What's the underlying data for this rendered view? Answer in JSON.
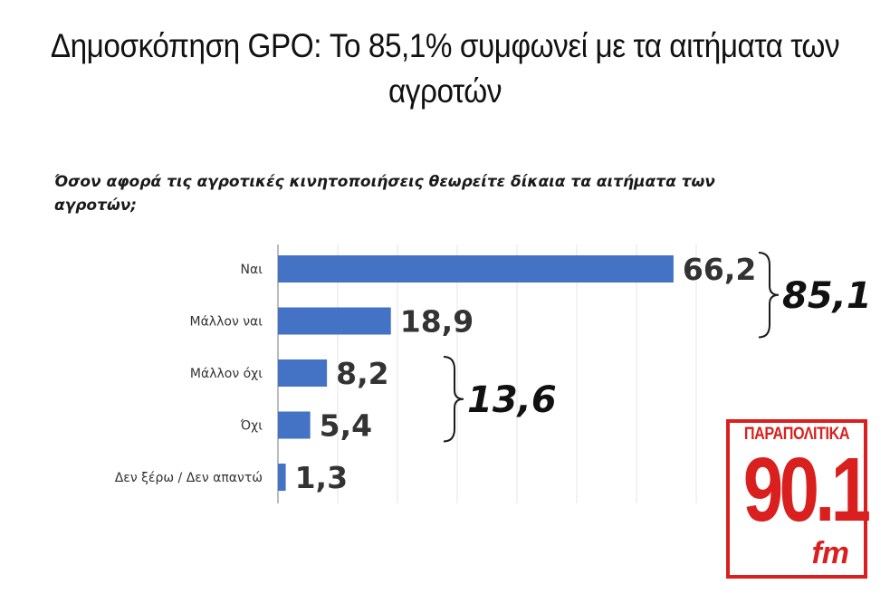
{
  "headline": {
    "line1": "Δημοσκόπηση GPO: Το 85,1% συμφωνεί με τα αιτήματα των",
    "line2": "αγροτών"
  },
  "question": {
    "line1": "Όσον αφορά τις αγροτικές κινητοποιήσεις θεωρείτε δίκαια τα αιτήματα των",
    "line2": "αγροτών;"
  },
  "chart_data": {
    "type": "bar",
    "orientation": "horizontal",
    "categories": [
      "Ναι",
      "Μάλλον ναι",
      "Μάλλον όχι",
      "Όχι",
      "Δεν ξέρω / Δεν απαντώ"
    ],
    "values": [
      66.2,
      18.9,
      8.2,
      5.4,
      1.3
    ],
    "value_labels": [
      "66,2",
      "18,9",
      "8,2",
      "5,4",
      "1,3"
    ],
    "xlim": [
      0,
      70
    ],
    "grid": true,
    "bar_color": "#4472c4",
    "groups": [
      {
        "members": [
          0,
          1
        ],
        "label": "85,1"
      },
      {
        "members": [
          2,
          3
        ],
        "label": "13,6"
      }
    ]
  },
  "logo": {
    "brand": "ΠΑΡΑΠΟΛΙΤΙΚΑ",
    "frequency": "90.1",
    "band": "fm",
    "color": "#d9201e"
  }
}
